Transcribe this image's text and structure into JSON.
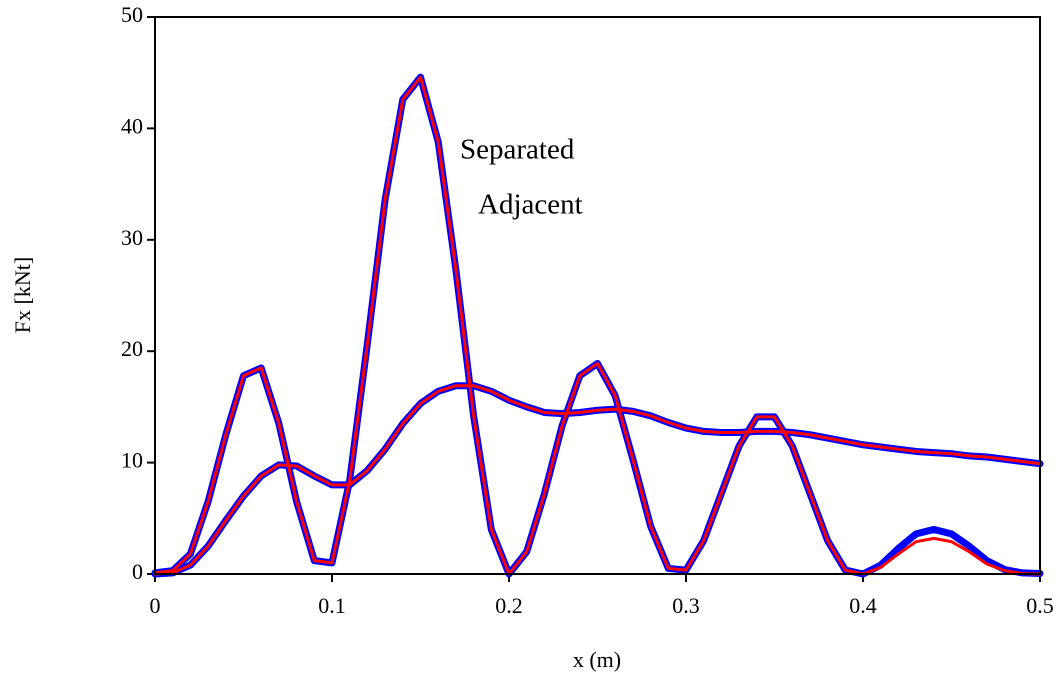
{
  "chart_data": {
    "type": "line",
    "xlabel": "x (m)",
    "ylabel": "Fx [kNt]",
    "x": [
      0,
      0.01,
      0.02,
      0.03,
      0.04,
      0.05,
      0.06,
      0.07,
      0.08,
      0.09,
      0.1,
      0.11,
      0.12,
      0.13,
      0.14,
      0.15,
      0.16,
      0.17,
      0.18,
      0.19,
      0.2,
      0.21,
      0.22,
      0.23,
      0.24,
      0.25,
      0.26,
      0.27,
      0.28,
      0.29,
      0.3,
      0.31,
      0.32,
      0.33,
      0.34,
      0.35,
      0.36,
      0.37,
      0.38,
      0.39,
      0.4,
      0.41,
      0.42,
      0.43,
      0.44,
      0.45,
      0.46,
      0.47,
      0.48,
      0.49,
      0.5
    ],
    "series": [
      {
        "name": "Separated",
        "color": "#0000ff",
        "line_width": 7,
        "values": [
          0.1,
          0.3,
          1.8,
          6.5,
          12.5,
          17.8,
          18.5,
          13.5,
          6.5,
          1.2,
          1.0,
          8.4,
          20.7,
          33.6,
          42.6,
          44.6,
          38.8,
          27.3,
          14.2,
          4,
          0,
          2,
          7.2,
          13.3,
          17.8,
          18.9,
          16,
          10.3,
          4.3,
          0.5,
          0.35,
          3,
          7.25,
          11.5,
          14.1,
          14.1,
          11.5,
          7.25,
          3,
          0.35,
          0,
          0.8,
          2.3,
          3.6,
          4,
          3.6,
          2.5,
          1.2,
          0.4,
          0.1,
          0.05
        ]
      },
      {
        "color": "#0000ff",
        "line_width": 7,
        "values": [
          0,
          0.1,
          0.8,
          2.5,
          4.8,
          7,
          8.8,
          9.8,
          9.7,
          8.8,
          8,
          8,
          9.3,
          11.2,
          13.5,
          15.3,
          16.4,
          16.9,
          16.9,
          16.4,
          15.6,
          15,
          14.5,
          14.4,
          14.5,
          14.7,
          14.8,
          14.6,
          14.2,
          13.6,
          13.1,
          12.8,
          12.7,
          12.7,
          12.8,
          12.8,
          12.7,
          12.5,
          12.2,
          11.9,
          11.6,
          11.4,
          11.2,
          11,
          10.9,
          10.8,
          10.6,
          10.5,
          10.3,
          10.1,
          9.9
        ]
      },
      {
        "name": "Adjacent",
        "color": "#ff0000",
        "line_width": 3,
        "values": [
          0.1,
          0.3,
          1.8,
          6.5,
          12.5,
          17.8,
          18.5,
          13.5,
          6.5,
          1.2,
          1.0,
          8.4,
          20.7,
          33.6,
          42.6,
          44.6,
          38.8,
          27.3,
          14.2,
          4,
          0,
          2,
          7.2,
          13.3,
          17.8,
          18.9,
          16,
          10.3,
          4.3,
          0.5,
          0.35,
          3,
          7.25,
          11.5,
          14.1,
          14.1,
          11.5,
          7.25,
          3,
          0.35,
          0,
          0.6,
          1.8,
          2.9,
          3.2,
          2.9,
          2,
          0.9,
          0.3,
          0.05,
          0
        ]
      },
      {
        "color": "#ff0000",
        "line_width": 3,
        "values": [
          0,
          0.1,
          0.8,
          2.5,
          4.8,
          7,
          8.8,
          9.8,
          9.7,
          8.8,
          8,
          8,
          9.3,
          11.2,
          13.5,
          15.3,
          16.4,
          16.9,
          16.9,
          16.4,
          15.6,
          15,
          14.5,
          14.4,
          14.5,
          14.7,
          14.8,
          14.6,
          14.2,
          13.6,
          13.1,
          12.8,
          12.7,
          12.7,
          12.8,
          12.8,
          12.7,
          12.5,
          12.2,
          11.9,
          11.6,
          11.4,
          11.2,
          11,
          10.9,
          10.8,
          10.6,
          10.5,
          10.3,
          10.1,
          9.9
        ]
      }
    ],
    "xlim": [
      0,
      0.5
    ],
    "xticks": [
      0,
      0.1,
      0.2,
      0.3,
      0.4,
      0.5
    ],
    "ylim": [
      0,
      50
    ],
    "yticks": [
      0,
      10,
      20,
      30,
      40,
      50
    ],
    "grid": false
  }
}
